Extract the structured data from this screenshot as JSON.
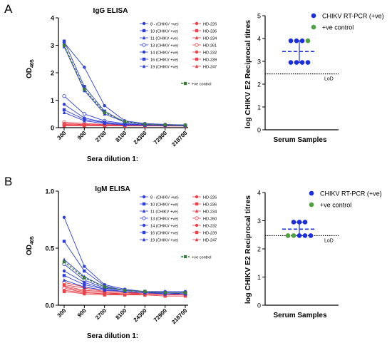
{
  "panels": [
    {
      "letter": "A",
      "elisa": {
        "title": "IgG ELISA",
        "ylabel_main": "OD",
        "ylabel_sub": "405",
        "xlabel": "Sera dilution 1:"
      },
      "titres": {
        "ylabel": "log CHIKV E2 Reciprocal titres",
        "xlabel": "Serum Samples"
      }
    },
    {
      "letter": "B",
      "elisa": {
        "title": "IgM ELISA",
        "ylabel_main": "OD",
        "ylabel_sub": "405",
        "xlabel": "Sera dilution 1:"
      },
      "titres": {
        "ylabel": "log CHIKV E2 Reciprocal titres",
        "xlabel": "Serum Samples"
      }
    }
  ],
  "chart_data": [
    {
      "id": "igg-elisa",
      "type": "line",
      "title": "IgG ELISA",
      "xlabel": "Sera dilution 1:",
      "ylabel": "OD405",
      "x": [
        "300",
        "900",
        "2700",
        "8100",
        "24300",
        "72900",
        "218700"
      ],
      "ylim": [
        0,
        4
      ],
      "yticks": [
        0,
        1,
        2,
        3,
        4
      ],
      "grid": false,
      "legend_left": [
        "8 - (CHIKV +ve)",
        "10 (CHIKV +ve)",
        "11 (CHIKV +ve)",
        "13 (CHIKV +ve)",
        "14 (CHIKV +ve)",
        "16 (CHIKV +ve)",
        "19 (CHIKV +ve)"
      ],
      "legend_right": [
        "HD-226",
        "HD-236",
        "HD-234",
        "HD-261",
        "HD-232",
        "HD-239",
        "HD-247"
      ],
      "legend_control": "+ve control",
      "colors": {
        "chikv": "#2f3fd6",
        "hd": "#e8424a",
        "control": "#3a7a3a"
      },
      "series": [
        {
          "group": "chikv",
          "values": [
            3.1,
            2.2,
            0.8,
            0.25,
            0.15,
            0.12,
            0.1
          ]
        },
        {
          "group": "chikv",
          "values": [
            3.15,
            1.5,
            0.6,
            0.2,
            0.12,
            0.1,
            0.08
          ]
        },
        {
          "group": "chikv",
          "values": [
            2.95,
            1.35,
            0.5,
            0.2,
            0.12,
            0.1,
            0.08
          ]
        },
        {
          "group": "chikv",
          "values": [
            1.15,
            0.5,
            0.25,
            0.15,
            0.1,
            0.08,
            0.08
          ]
        },
        {
          "group": "chikv",
          "values": [
            0.85,
            0.35,
            0.2,
            0.12,
            0.1,
            0.08,
            0.07
          ]
        },
        {
          "group": "chikv",
          "values": [
            0.65,
            0.3,
            0.18,
            0.12,
            0.1,
            0.08,
            0.07
          ]
        },
        {
          "group": "chikv",
          "values": [
            0.55,
            0.25,
            0.15,
            0.1,
            0.09,
            0.08,
            0.07
          ]
        },
        {
          "group": "hd",
          "values": [
            0.2,
            0.15,
            0.12,
            0.1,
            0.09,
            0.08,
            0.08
          ]
        },
        {
          "group": "hd",
          "values": [
            0.15,
            0.12,
            0.1,
            0.09,
            0.08,
            0.08,
            0.07
          ]
        },
        {
          "group": "hd",
          "values": [
            0.12,
            0.1,
            0.09,
            0.08,
            0.08,
            0.07,
            0.07
          ]
        },
        {
          "group": "hd",
          "values": [
            0.1,
            0.09,
            0.08,
            0.08,
            0.07,
            0.07,
            0.07
          ]
        },
        {
          "group": "hd",
          "values": [
            0.09,
            0.08,
            0.08,
            0.07,
            0.07,
            0.07,
            0.06
          ]
        },
        {
          "group": "hd",
          "values": [
            0.08,
            0.08,
            0.07,
            0.07,
            0.07,
            0.06,
            0.06
          ]
        },
        {
          "group": "hd",
          "values": [
            0.07,
            0.07,
            0.07,
            0.06,
            0.06,
            0.06,
            0.06
          ]
        },
        {
          "group": "control",
          "values": [
            3.0,
            1.4,
            0.55,
            0.22,
            0.13,
            0.1,
            0.09
          ]
        }
      ]
    },
    {
      "id": "igg-titres",
      "type": "scatter",
      "xlabel": "Serum Samples",
      "ylabel": "log CHIKV E2 Reciprocal titres",
      "ylim": [
        0,
        5
      ],
      "yticks": [
        0,
        1,
        2,
        3,
        4,
        5
      ],
      "legend": [
        "CHIKV RT-PCR (+ve)",
        "+ve control"
      ],
      "colors": {
        "chikv": "#1c2fe0",
        "control": "#4fa040",
        "median": "#1c2fe0",
        "lod": "#000000"
      },
      "points": [
        {
          "group": "chikv",
          "y": 3.9
        },
        {
          "group": "chikv",
          "y": 3.9
        },
        {
          "group": "chikv",
          "y": 3.9
        },
        {
          "group": "control",
          "y": 3.9
        },
        {
          "group": "chikv",
          "y": 2.95
        },
        {
          "group": "chikv",
          "y": 2.95
        },
        {
          "group": "chikv",
          "y": 2.95
        },
        {
          "group": "chikv",
          "y": 2.95
        }
      ],
      "median": 3.43,
      "range": [
        2.95,
        3.9
      ],
      "lod": {
        "label": "LoD",
        "value": 2.45
      }
    },
    {
      "id": "igm-elisa",
      "type": "line",
      "title": "IgM ELISA",
      "xlabel": "Sera dilution 1:",
      "ylabel": "OD405",
      "x": [
        "300",
        "900",
        "2700",
        "8100",
        "24300",
        "72900",
        "218700"
      ],
      "ylim": [
        0,
        1
      ],
      "yticks": [
        0.0,
        0.5,
        1.0
      ],
      "ytick_labels": [
        "0.0",
        "0.5",
        "1.0"
      ],
      "grid": false,
      "legend_left": [
        "8 - (CHIKV +ve)",
        "10 (CHIKV +ve)",
        "11 (CHIKV +ve)",
        "13 (CHIKV +ve)",
        "14 (CHIKV +ve)",
        "16 (CHIKV +ve)",
        "19 (CHIKV +ve)"
      ],
      "legend_right": [
        "HD-226",
        "HD-236",
        "HD-234",
        "HD-260",
        "HD-232",
        "HD-239",
        "HD-247"
      ],
      "legend_control": "+ve control",
      "colors": {
        "chikv": "#2f3fd6",
        "hd": "#e8424a",
        "control": "#3a7a3a"
      },
      "series": [
        {
          "group": "chikv",
          "values": [
            0.77,
            0.34,
            0.18,
            0.14,
            0.12,
            0.12,
            0.12
          ]
        },
        {
          "group": "chikv",
          "values": [
            0.56,
            0.3,
            0.17,
            0.13,
            0.12,
            0.11,
            0.11
          ]
        },
        {
          "group": "chikv",
          "values": [
            0.4,
            0.25,
            0.16,
            0.13,
            0.12,
            0.11,
            0.11
          ]
        },
        {
          "group": "chikv",
          "values": [
            0.36,
            0.22,
            0.15,
            0.13,
            0.12,
            0.11,
            0.11
          ]
        },
        {
          "group": "chikv",
          "values": [
            0.3,
            0.2,
            0.14,
            0.12,
            0.11,
            0.11,
            0.1
          ]
        },
        {
          "group": "chikv",
          "values": [
            0.26,
            0.18,
            0.14,
            0.12,
            0.11,
            0.1,
            0.1
          ]
        },
        {
          "group": "chikv",
          "values": [
            0.22,
            0.16,
            0.13,
            0.12,
            0.11,
            0.1,
            0.1
          ]
        },
        {
          "group": "hd",
          "values": [
            0.2,
            0.16,
            0.13,
            0.12,
            0.11,
            0.11,
            0.11
          ]
        },
        {
          "group": "hd",
          "values": [
            0.18,
            0.15,
            0.12,
            0.11,
            0.11,
            0.1,
            0.1
          ]
        },
        {
          "group": "hd",
          "values": [
            0.17,
            0.13,
            0.12,
            0.11,
            0.1,
            0.1,
            0.1
          ]
        },
        {
          "group": "hd",
          "values": [
            0.16,
            0.12,
            0.11,
            0.1,
            0.1,
            0.1,
            0.09
          ]
        },
        {
          "group": "hd",
          "values": [
            0.15,
            0.11,
            0.1,
            0.1,
            0.09,
            0.09,
            0.09
          ]
        },
        {
          "group": "hd",
          "values": [
            0.13,
            0.11,
            0.1,
            0.09,
            0.09,
            0.09,
            0.09
          ]
        },
        {
          "group": "hd",
          "values": [
            0.12,
            0.1,
            0.09,
            0.09,
            0.09,
            0.08,
            0.08
          ]
        },
        {
          "group": "control",
          "values": [
            0.38,
            0.24,
            0.16,
            0.13,
            0.12,
            0.11,
            0.11
          ]
        }
      ]
    },
    {
      "id": "igm-titres",
      "type": "scatter",
      "xlabel": "Serum Samples",
      "ylabel": "log CHIKV E2 Reciprocal titres",
      "ylim": [
        0,
        4
      ],
      "yticks": [
        0,
        1,
        2,
        3,
        4
      ],
      "legend": [
        "CHIKV RT-PCR (+ve)",
        "+ve control"
      ],
      "colors": {
        "chikv": "#1c2fe0",
        "control": "#4fa040",
        "median": "#1c2fe0",
        "lod": "#000000"
      },
      "points": [
        {
          "group": "chikv",
          "y": 2.95
        },
        {
          "group": "chikv",
          "y": 2.95
        },
        {
          "group": "chikv",
          "y": 2.95
        },
        {
          "group": "control",
          "y": 2.47
        },
        {
          "group": "control",
          "y": 2.47
        },
        {
          "group": "chikv",
          "y": 2.47
        },
        {
          "group": "chikv",
          "y": 2.47
        },
        {
          "group": "chikv",
          "y": 2.47
        }
      ],
      "median": 2.7,
      "range": [
        2.47,
        2.95
      ],
      "lod": {
        "label": "LoD",
        "value": 2.47
      }
    }
  ]
}
